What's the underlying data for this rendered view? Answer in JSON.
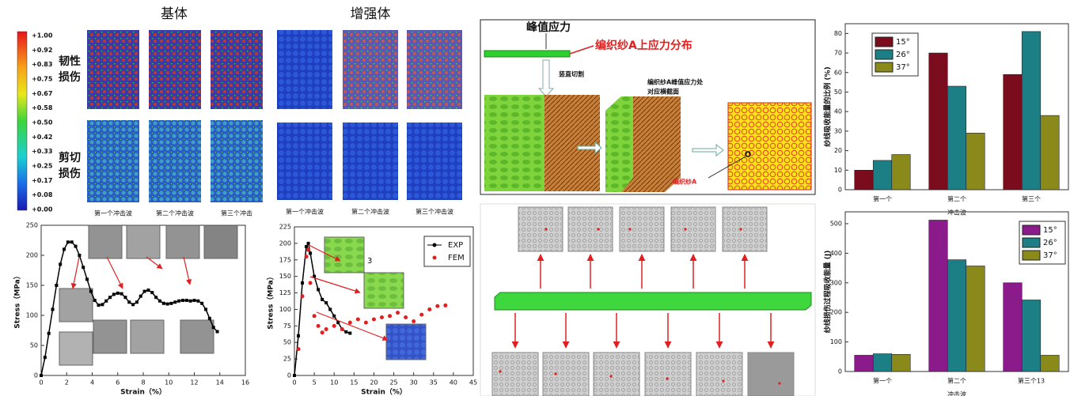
{
  "panel_a": {
    "titles": [
      "基体",
      "增强体"
    ],
    "colorbar_labels": [
      "+1.00",
      "+0.92",
      "+0.83",
      "+0.75",
      "+0.67",
      "+0.58",
      "+0.50",
      "+0.42",
      "+0.33",
      "+0.25",
      "+0.17",
      "+0.08",
      "+0.00"
    ],
    "row_labels": [
      [
        "韧性",
        "损伤"
      ],
      [
        "剪切",
        "损伤"
      ]
    ],
    "matrix_columns": [
      "第一个冲击波",
      "第二个冲击波",
      "第三个冲击"
    ],
    "reinforcement_columns": [
      "第一个冲击波",
      "第二个冲击波",
      "第三个冲击波"
    ]
  },
  "diagram": {
    "peak_stress": "峰值应力",
    "distribution": "编织纱A上应力分布",
    "cut": "竖直切割",
    "section": [
      "编织纱A峰值应力处",
      "对应横截面"
    ],
    "yarn": "编织纱A"
  },
  "chart_data": [
    {
      "type": "line",
      "xlabel": "Strain（%）",
      "ylabel": "Stress（MPa）",
      "xlim": [
        0,
        16
      ],
      "xticks": [
        0,
        2,
        4,
        6,
        8,
        10,
        12,
        14,
        16
      ],
      "ylim": [
        0,
        250
      ],
      "yticks": [
        0,
        50,
        100,
        150,
        200,
        250
      ],
      "series": [
        {
          "color": "#000000",
          "marker": "square",
          "line": true,
          "x": [
            0,
            0.3,
            0.6,
            0.9,
            1.2,
            1.5,
            1.8,
            2.1,
            2.4,
            2.7,
            3.0,
            3.3,
            3.6,
            3.9,
            4.2,
            4.5,
            4.8,
            5.1,
            5.4,
            5.7,
            6.0,
            6.3,
            6.6,
            6.9,
            7.2,
            7.5,
            7.8,
            8.1,
            8.4,
            8.7,
            9.0,
            9.3,
            9.6,
            9.9,
            10.2,
            10.5,
            10.8,
            11.1,
            11.4,
            11.7,
            12.0,
            12.3,
            12.6,
            12.9,
            13.2,
            13.5,
            13.8
          ],
          "values": [
            0,
            30,
            70,
            110,
            150,
            185,
            210,
            222,
            222,
            215,
            200,
            180,
            160,
            140,
            125,
            117,
            118,
            124,
            130,
            135,
            137,
            136,
            130,
            122,
            118,
            122,
            132,
            140,
            142,
            138,
            130,
            124,
            120,
            119,
            120,
            122,
            124,
            125,
            125,
            124,
            125,
            124,
            120,
            110,
            95,
            80,
            73
          ]
        }
      ]
    },
    {
      "type": "line",
      "xlabel": "Strain（%）",
      "ylabel": "Stress（MPa）",
      "xlim": [
        0,
        45
      ],
      "xticks": [
        0,
        5,
        10,
        15,
        20,
        25,
        30,
        35,
        40,
        45
      ],
      "ylim": [
        0,
        225
      ],
      "yticks": [
        0,
        25,
        50,
        75,
        100,
        125,
        150,
        175,
        200,
        225
      ],
      "annotation": "3",
      "legend": "upper right",
      "series": [
        {
          "name": "EXP",
          "color": "#000000",
          "marker": "square",
          "line": true,
          "x": [
            0,
            1,
            2,
            3,
            3.5,
            4,
            5,
            6,
            7,
            8,
            9,
            10,
            11,
            12,
            13,
            14
          ],
          "values": [
            0,
            60,
            140,
            195,
            200,
            185,
            150,
            130,
            115,
            110,
            100,
            90,
            80,
            70,
            66,
            64
          ]
        },
        {
          "name": "FEM",
          "color": "#e02020",
          "marker": "circle",
          "line": false,
          "x": [
            1,
            2,
            3,
            3.5,
            4,
            5,
            6,
            7,
            8,
            10,
            12,
            14,
            16,
            18,
            20,
            22,
            24,
            26,
            28,
            30,
            32,
            34,
            36,
            38
          ],
          "values": [
            40,
            120,
            180,
            190,
            140,
            90,
            75,
            65,
            70,
            75,
            70,
            80,
            85,
            80,
            85,
            88,
            90,
            95,
            88,
            82,
            92,
            100,
            105,
            106
          ]
        }
      ]
    },
    {
      "type": "bar",
      "ylabel": "纱线吸收能量的比例 (%)",
      "xlabel": "冲击波",
      "categories": [
        "第一个",
        "第二个",
        "第三个"
      ],
      "ylim": [
        0,
        85
      ],
      "yticks": [
        0,
        10,
        20,
        30,
        40,
        50,
        60,
        70,
        80
      ],
      "legend": "upper left",
      "series": [
        {
          "name": "15°",
          "color": "#7b0c1d",
          "values": [
            10,
            70,
            59
          ]
        },
        {
          "name": "26°",
          "color": "#1c7f86",
          "values": [
            15,
            53,
            81
          ]
        },
        {
          "name": "37°",
          "color": "#8a8a1a",
          "values": [
            18,
            29,
            38
          ]
        }
      ]
    },
    {
      "type": "bar",
      "ylabel": "纱线损伤过程吸收能量 (J)",
      "xlabel": "冲击波",
      "categories": [
        "第一个",
        "第二个",
        "第三个13"
      ],
      "ylim": [
        0,
        540
      ],
      "yticks": [
        0,
        100,
        200,
        300,
        400,
        500
      ],
      "legend": "upper right",
      "series": [
        {
          "name": "15°",
          "color": "#8b1a8b",
          "values": [
            55,
            512,
            300
          ]
        },
        {
          "name": "26°",
          "color": "#1c7f86",
          "values": [
            60,
            378,
            242
          ]
        },
        {
          "name": "37°",
          "color": "#8a8a1a",
          "values": [
            58,
            357,
            55
          ]
        }
      ]
    }
  ]
}
